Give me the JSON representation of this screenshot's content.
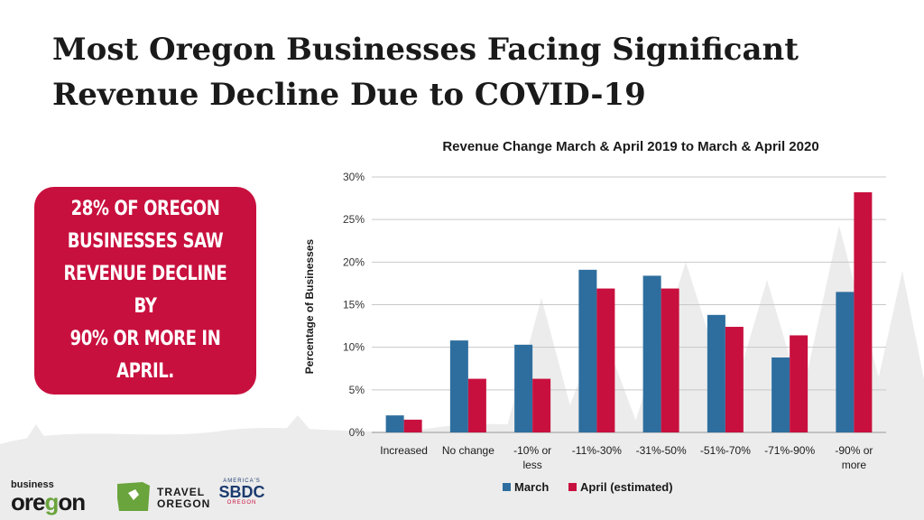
{
  "slide": {
    "title_line1": "Most Oregon Businesses Facing Significant",
    "title_line2": "Revenue Decline Due to COVID-19",
    "callout_lines": [
      "28% of Oregon",
      "businesses saw",
      "revenue decline by",
      "90% or more in",
      "April."
    ]
  },
  "logos": {
    "business_oregon_small": "business",
    "business_oregon_big_pre": "ore",
    "business_oregon_big_g": "g",
    "business_oregon_big_post": "on",
    "travel_line1": "TRAVEL",
    "travel_line2": "OREGON",
    "sbdc_top": "AMERICA'S",
    "sbdc_mid": "SBDC",
    "sbdc_bot": "OREGON"
  },
  "colors": {
    "march": "#2e6e9e",
    "april": "#c8103e",
    "callout_bg": "#c8103e",
    "grid": "#c8c8c8"
  },
  "chart_data": {
    "type": "bar",
    "title": "Revenue Change March & April 2019 to March & April 2020",
    "ylabel": "Percentage of Businesses",
    "xlabel": "",
    "ylim": [
      0,
      30
    ],
    "yticks": [
      "0%",
      "5%",
      "10%",
      "15%",
      "20%",
      "25%",
      "30%"
    ],
    "grid": true,
    "legend_position": "bottom",
    "categories": [
      [
        "Increased"
      ],
      [
        "No change"
      ],
      [
        "-10% or",
        "less"
      ],
      [
        "-11%-30%"
      ],
      [
        "-31%-50%"
      ],
      [
        "-51%-70%"
      ],
      [
        "-71%-90%"
      ],
      [
        "-90% or",
        "more"
      ]
    ],
    "series": [
      {
        "name": "March",
        "values": [
          2.0,
          10.8,
          10.3,
          19.1,
          18.4,
          13.8,
          8.8,
          16.5
        ]
      },
      {
        "name": "April (estimated)",
        "values": [
          1.5,
          6.3,
          6.3,
          16.9,
          16.9,
          12.4,
          11.4,
          28.2
        ]
      }
    ]
  }
}
